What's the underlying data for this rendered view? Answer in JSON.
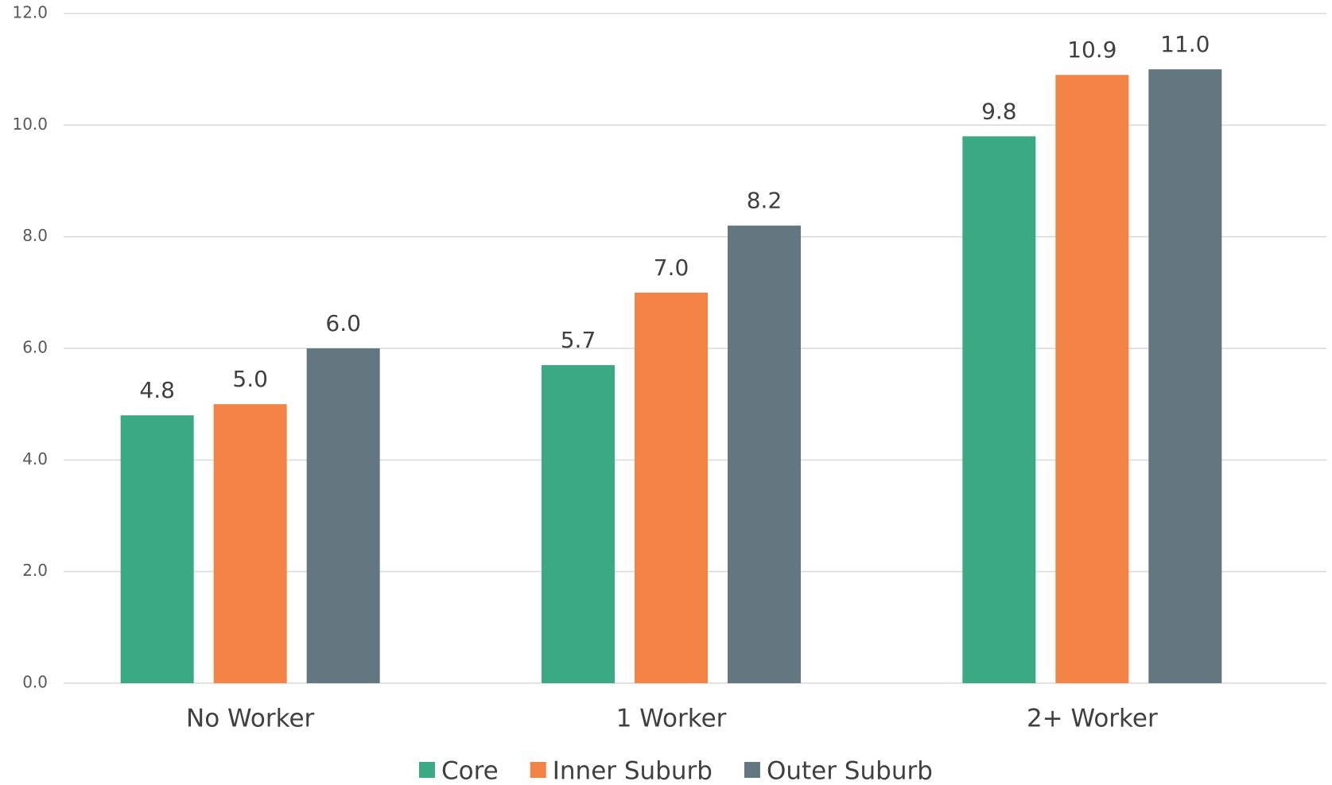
{
  "chart_data": {
    "type": "bar",
    "categories": [
      "No Worker",
      "1 Worker",
      "2+ Worker"
    ],
    "series": [
      {
        "name": "Core",
        "color": "#3aaa84",
        "values": [
          4.8,
          5.7,
          9.8
        ],
        "value_labels": [
          "4.8",
          "5.7",
          "9.8"
        ]
      },
      {
        "name": "Inner Suburb",
        "color": "#f48446",
        "values": [
          5.0,
          7.0,
          10.9
        ],
        "value_labels": [
          "5.0",
          "7.0",
          "10.9"
        ]
      },
      {
        "name": "Outer Suburb",
        "color": "#637780",
        "values": [
          6.0,
          8.2,
          11.0
        ],
        "value_labels": [
          "6.0",
          "8.2",
          "11.0"
        ]
      }
    ],
    "ylim": [
      0,
      12
    ],
    "yticks": [
      {
        "value": 0,
        "label": "0.0"
      },
      {
        "value": 2,
        "label": "2.0"
      },
      {
        "value": 4,
        "label": "4.0"
      },
      {
        "value": 6,
        "label": "6.0"
      },
      {
        "value": 8,
        "label": "8.0"
      },
      {
        "value": 10,
        "label": "10.0"
      },
      {
        "value": 12,
        "label": "12.0"
      }
    ],
    "grid": true,
    "legend": "bottom"
  }
}
